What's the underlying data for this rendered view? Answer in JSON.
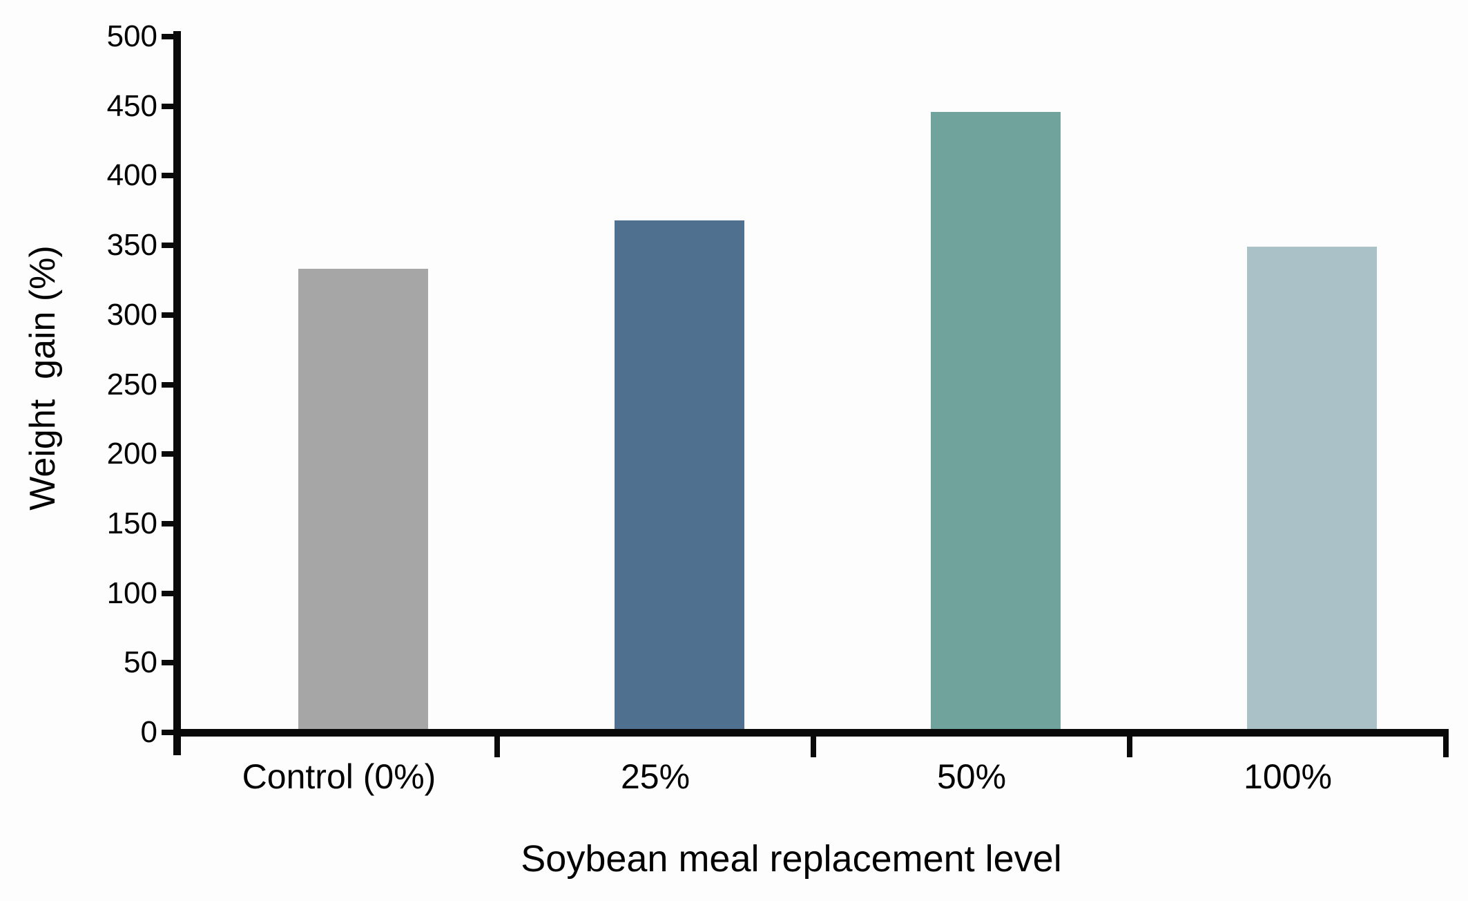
{
  "chart_data": {
    "type": "bar",
    "title": "",
    "xlabel": "Soybean meal replacement level",
    "ylabel": "Weight  gain (%)",
    "categories": [
      "Control (0%)",
      "25%",
      "50%",
      "100%"
    ],
    "values": [
      333,
      368,
      446,
      349
    ],
    "bar_colors": [
      "#a6a6a6",
      "#50708f",
      "#70a39b",
      "#a9c1c7"
    ],
    "yticks": [
      0,
      50,
      100,
      150,
      200,
      250,
      300,
      350,
      400,
      450,
      500
    ],
    "ylim": [
      0,
      500
    ],
    "grid": false,
    "legend_position": "none",
    "axis_color": "#0a0a0a",
    "background_color": "#fdfdfd"
  }
}
